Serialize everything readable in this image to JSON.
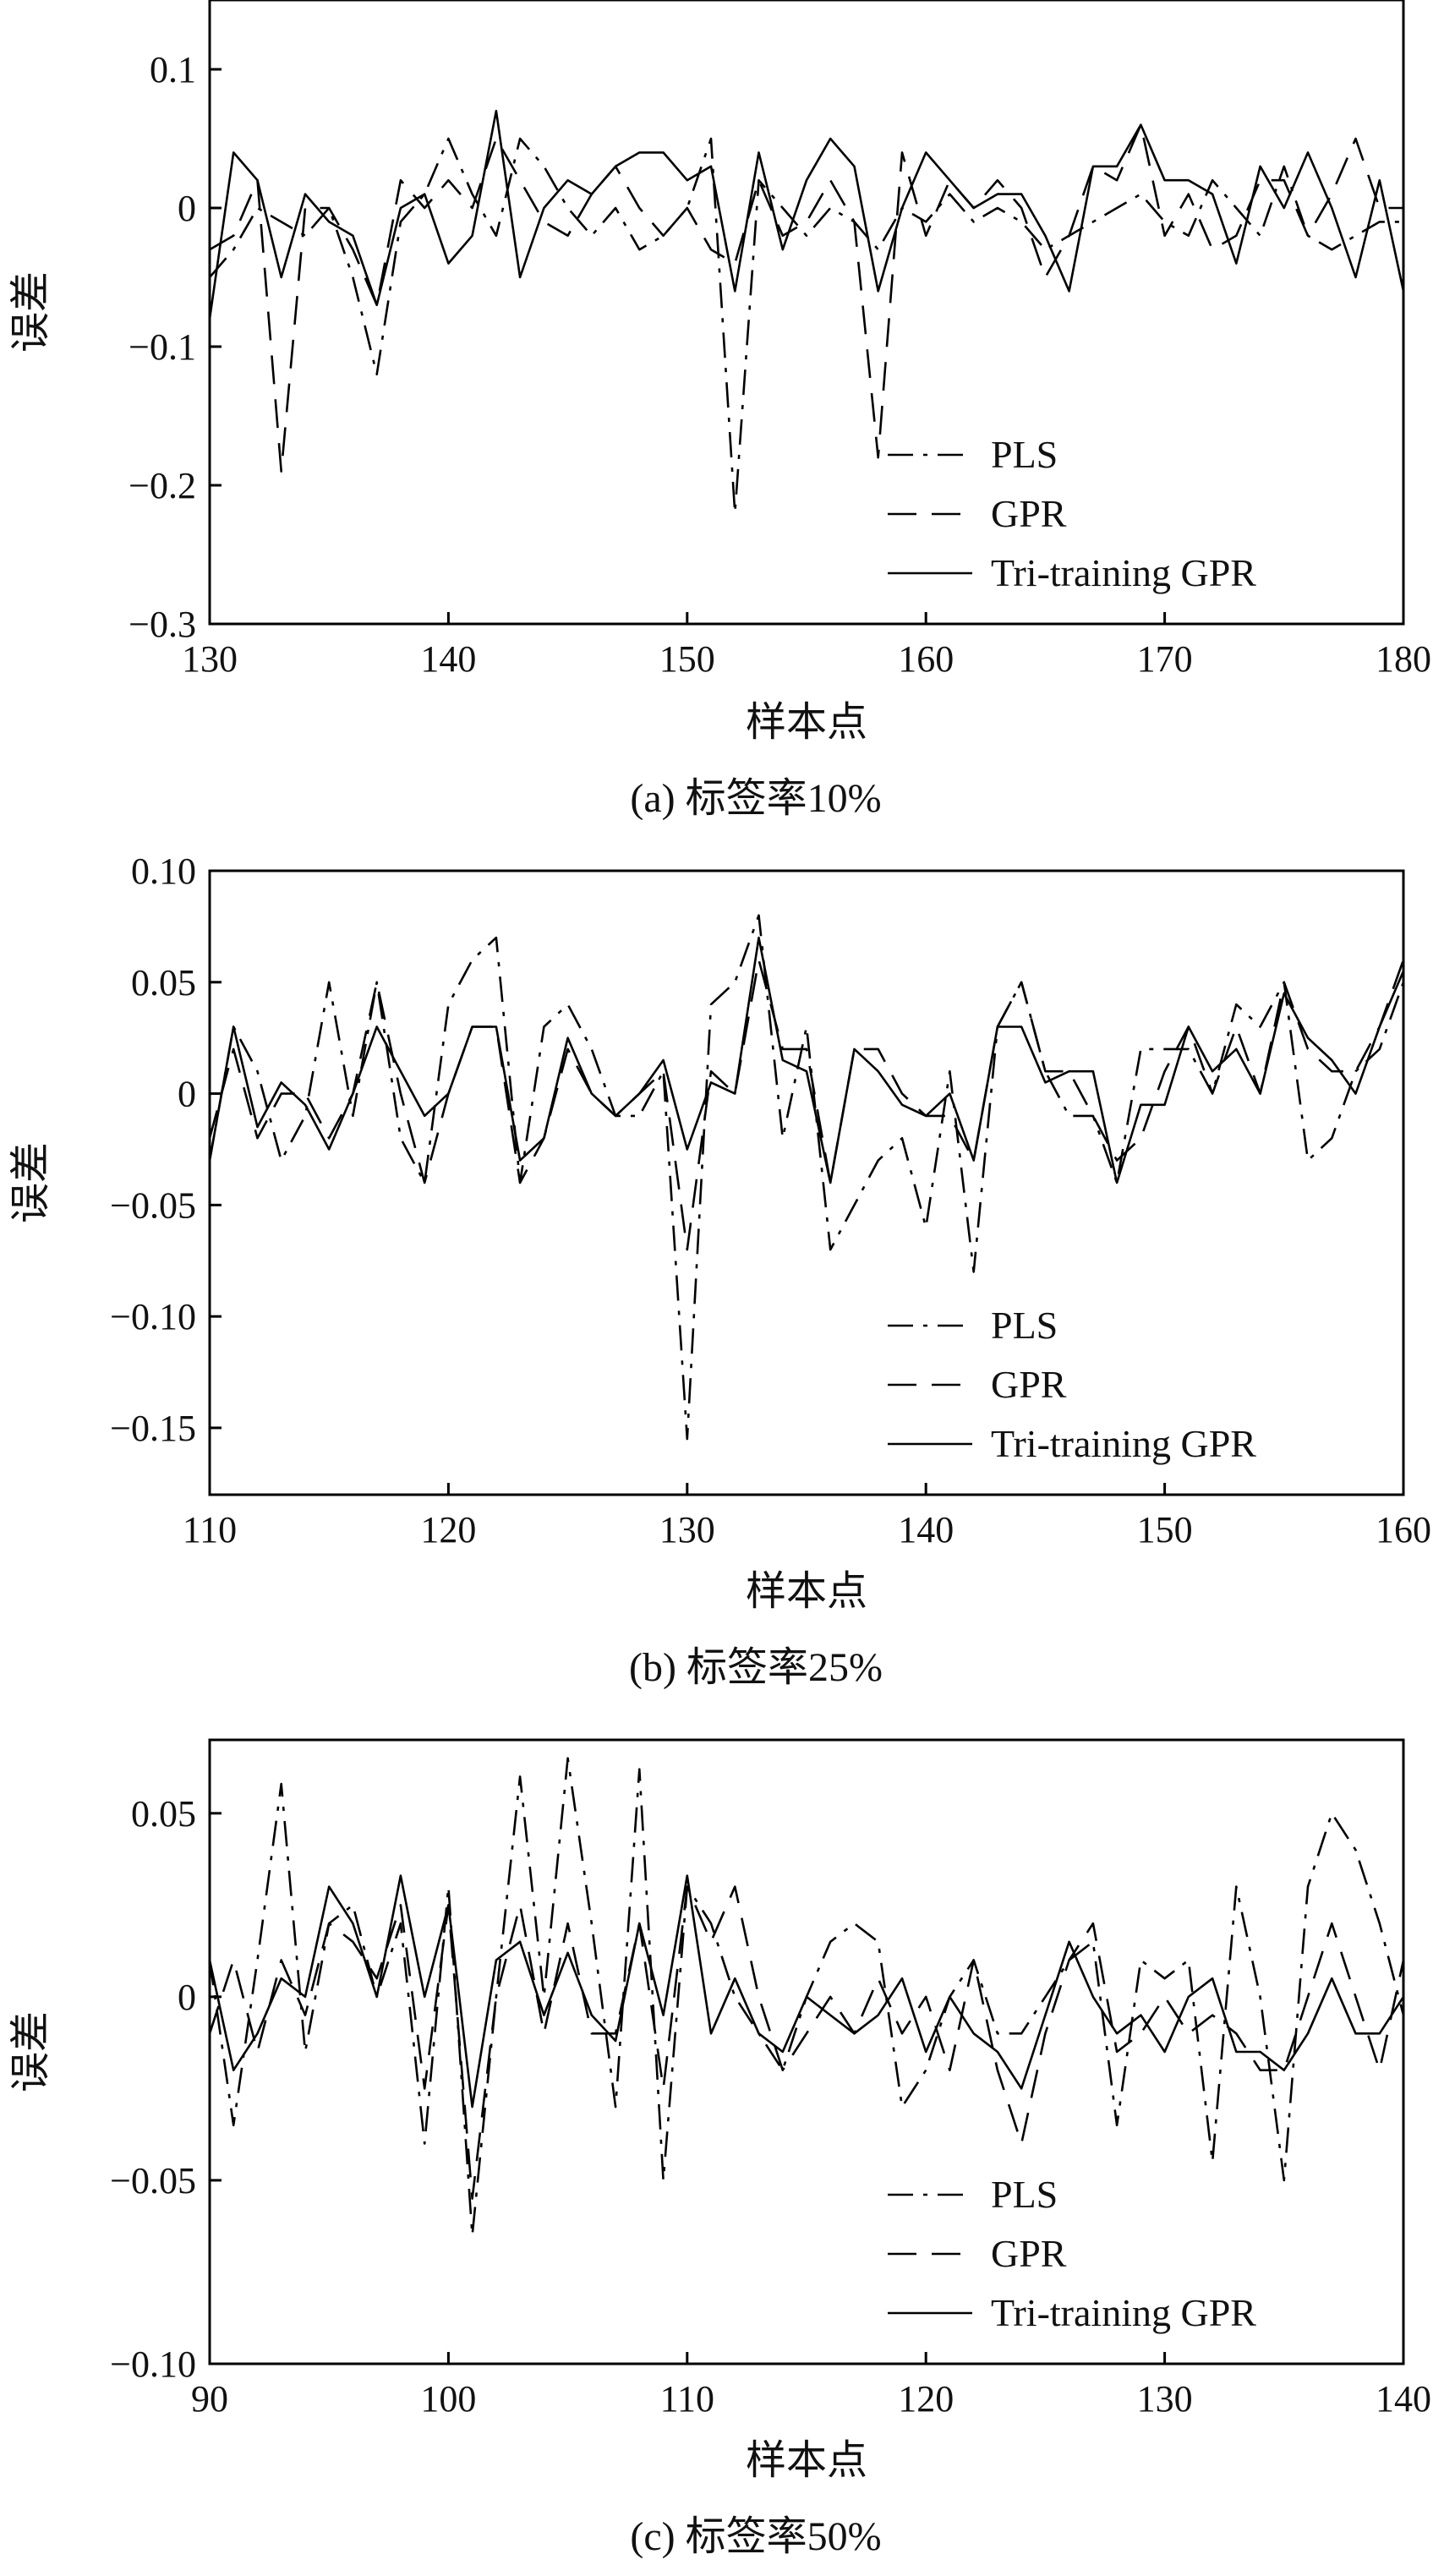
{
  "chart_data": [
    {
      "type": "line",
      "caption": "(a) 标签率10%",
      "xlabel": "样本点",
      "ylabel": "误差",
      "xlim": [
        130,
        180
      ],
      "ylim": [
        -0.3,
        0.15
      ],
      "xticks": [
        130,
        140,
        150,
        160,
        170,
        180
      ],
      "xtick_labels": [
        "130",
        "140",
        "150",
        "160",
        "170",
        "180"
      ],
      "yticks": [
        0.1,
        0,
        -0.1,
        -0.2,
        -0.3
      ],
      "ytick_labels": [
        "0.1",
        "0",
        "−0.1",
        "−0.2",
        "−0.3"
      ],
      "grid": false,
      "legend_position": "bottom-right",
      "x": [
        130,
        131,
        132,
        133,
        134,
        135,
        136,
        137,
        138,
        139,
        140,
        141,
        142,
        143,
        144,
        145,
        146,
        147,
        148,
        149,
        150,
        151,
        152,
        153,
        154,
        155,
        156,
        157,
        158,
        159,
        160,
        161,
        162,
        163,
        164,
        165,
        166,
        167,
        168,
        169,
        170,
        171,
        172,
        173,
        174,
        175,
        176,
        177,
        178,
        179,
        180
      ],
      "series": [
        {
          "name": "PLS",
          "style": "dashdot",
          "values": [
            -0.05,
            -0.03,
            0.0,
            -0.01,
            -0.02,
            0.0,
            -0.05,
            -0.12,
            -0.01,
            0.01,
            0.05,
            0.01,
            -0.02,
            0.05,
            0.03,
            0.0,
            -0.02,
            0.0,
            -0.03,
            -0.02,
            0.0,
            0.05,
            -0.22,
            0.02,
            0.0,
            -0.02,
            0.0,
            -0.01,
            -0.03,
            0.0,
            -0.01,
            0.01,
            -0.01,
            0.0,
            -0.01,
            -0.03,
            -0.02,
            -0.01,
            0.0,
            0.01,
            -0.01,
            -0.02,
            0.02,
            0.0,
            -0.02,
            0.03,
            -0.02,
            -0.03,
            -0.02,
            -0.01,
            -0.01
          ]
        },
        {
          "name": "GPR",
          "style": "dashed",
          "values": [
            -0.03,
            -0.02,
            0.02,
            -0.19,
            0.0,
            0.0,
            -0.03,
            -0.07,
            0.02,
            0.0,
            0.02,
            0.0,
            0.05,
            0.02,
            -0.01,
            -0.02,
            0.01,
            0.03,
            0.0,
            -0.02,
            0.0,
            -0.03,
            -0.04,
            0.02,
            -0.02,
            -0.01,
            0.02,
            -0.01,
            -0.18,
            0.04,
            -0.02,
            0.02,
            0.0,
            0.02,
            0.0,
            -0.05,
            -0.02,
            0.03,
            0.02,
            0.06,
            -0.02,
            0.01,
            -0.03,
            -0.02,
            0.02,
            0.02,
            -0.02,
            0.01,
            0.05,
            0.0,
            0.0
          ]
        },
        {
          "name": "Tri-training GPR",
          "style": "solid",
          "values": [
            -0.08,
            0.04,
            0.02,
            -0.05,
            0.01,
            -0.01,
            -0.02,
            -0.07,
            0.0,
            0.01,
            -0.04,
            -0.02,
            0.07,
            -0.05,
            0.0,
            0.02,
            0.01,
            0.03,
            0.04,
            0.04,
            0.02,
            0.03,
            -0.06,
            0.04,
            -0.03,
            0.02,
            0.05,
            0.03,
            -0.06,
            0.0,
            0.04,
            0.02,
            0.0,
            0.01,
            0.01,
            -0.02,
            -0.06,
            0.03,
            0.03,
            0.06,
            0.02,
            0.02,
            0.01,
            -0.04,
            0.03,
            0.0,
            0.04,
            0.0,
            -0.05,
            0.02,
            -0.06
          ]
        }
      ]
    },
    {
      "type": "line",
      "caption": "(b) 标签率25%",
      "xlabel": "样本点",
      "ylabel": "误差",
      "xlim": [
        110,
        160
      ],
      "ylim": [
        -0.18,
        0.1
      ],
      "xticks": [
        110,
        120,
        130,
        140,
        150,
        160
      ],
      "xtick_labels": [
        "110",
        "120",
        "130",
        "140",
        "150",
        "160"
      ],
      "yticks": [
        0.1,
        0.05,
        0,
        -0.05,
        -0.1,
        -0.15
      ],
      "ytick_labels": [
        "0.10",
        "0.05",
        "0",
        "−0.05",
        "−0.10",
        "−0.15"
      ],
      "grid": false,
      "legend_position": "bottom-right",
      "x": [
        110,
        111,
        112,
        113,
        114,
        115,
        116,
        117,
        118,
        119,
        120,
        121,
        122,
        123,
        124,
        125,
        126,
        127,
        128,
        129,
        130,
        131,
        132,
        133,
        134,
        135,
        136,
        137,
        138,
        139,
        140,
        141,
        142,
        143,
        144,
        145,
        146,
        147,
        148,
        149,
        150,
        151,
        152,
        153,
        154,
        155,
        156,
        157,
        158,
        159,
        160
      ],
      "series": [
        {
          "name": "PLS",
          "style": "dashdot",
          "values": [
            -0.03,
            0.03,
            0.01,
            -0.03,
            -0.01,
            0.05,
            -0.01,
            0.05,
            -0.02,
            -0.04,
            0.04,
            0.06,
            0.07,
            -0.04,
            0.03,
            0.04,
            0.02,
            -0.01,
            -0.01,
            0.01,
            -0.155,
            0.04,
            0.05,
            0.08,
            -0.02,
            0.03,
            -0.07,
            -0.05,
            -0.03,
            -0.02,
            -0.06,
            0.01,
            -0.08,
            0.03,
            0.05,
            0.01,
            -0.01,
            -0.01,
            -0.04,
            0.02,
            0.02,
            0.02,
            0.0,
            0.04,
            0.03,
            0.05,
            -0.03,
            -0.02,
            0.01,
            0.02,
            0.05
          ]
        },
        {
          "name": "GPR",
          "style": "dashed",
          "values": [
            -0.02,
            0.02,
            -0.02,
            0.0,
            0.0,
            -0.02,
            0.0,
            0.05,
            0.0,
            -0.04,
            0.0,
            0.03,
            0.03,
            -0.04,
            -0.02,
            0.02,
            0.0,
            -0.01,
            0.0,
            0.01,
            -0.07,
            0.01,
            0.0,
            0.06,
            0.02,
            0.02,
            -0.04,
            0.02,
            0.02,
            0.0,
            -0.01,
            -0.01,
            -0.03,
            0.03,
            0.05,
            0.01,
            0.01,
            -0.01,
            -0.03,
            -0.02,
            0.01,
            0.03,
            0.0,
            0.03,
            0.0,
            0.05,
            0.02,
            0.01,
            0.01,
            0.03,
            0.06
          ]
        },
        {
          "name": "Tri-training GPR",
          "style": "solid",
          "values": [
            -0.03,
            0.03,
            -0.015,
            0.005,
            -0.005,
            -0.025,
            0.0,
            0.03,
            0.01,
            -0.01,
            0.0,
            0.03,
            0.03,
            -0.03,
            -0.02,
            0.025,
            0.0,
            -0.01,
            0.0,
            0.015,
            -0.025,
            0.005,
            0.0,
            0.07,
            0.015,
            0.01,
            -0.04,
            0.02,
            0.01,
            -0.005,
            -0.01,
            0.0,
            -0.03,
            0.03,
            0.03,
            0.005,
            0.01,
            0.01,
            -0.04,
            -0.005,
            -0.005,
            0.03,
            0.01,
            0.02,
            0.0,
            0.045,
            0.025,
            0.015,
            0.0,
            0.03,
            0.055
          ]
        }
      ]
    },
    {
      "type": "line",
      "caption": "(c) 标签率50%",
      "xlabel": "样本点",
      "ylabel": "误差",
      "xlim": [
        90,
        140
      ],
      "ylim": [
        -0.1,
        0.07
      ],
      "xticks": [
        90,
        100,
        110,
        120,
        130,
        140
      ],
      "xtick_labels": [
        "90",
        "100",
        "110",
        "120",
        "130",
        "140"
      ],
      "yticks": [
        0.05,
        0,
        -0.05,
        -0.1
      ],
      "ytick_labels": [
        "0.05",
        "0",
        "−0.05",
        "−0.10"
      ],
      "grid": false,
      "legend_position": "bottom-right",
      "x": [
        90,
        91,
        92,
        93,
        94,
        95,
        96,
        97,
        98,
        99,
        100,
        101,
        102,
        103,
        104,
        105,
        106,
        107,
        108,
        109,
        110,
        111,
        112,
        113,
        114,
        115,
        116,
        117,
        118,
        119,
        120,
        121,
        122,
        123,
        124,
        125,
        126,
        127,
        128,
        129,
        130,
        131,
        132,
        133,
        134,
        135,
        136,
        137,
        138,
        139,
        140
      ],
      "series": [
        {
          "name": "PLS",
          "style": "dashdot",
          "values": [
            0.01,
            -0.035,
            0.01,
            0.058,
            -0.015,
            0.02,
            0.025,
            0.0,
            0.02,
            -0.04,
            0.03,
            -0.065,
            0.0,
            0.06,
            0.0,
            0.065,
            0.02,
            -0.03,
            0.062,
            -0.05,
            0.03,
            0.02,
            0.0,
            -0.01,
            -0.02,
            0.0,
            0.015,
            0.02,
            0.015,
            -0.03,
            -0.02,
            0.0,
            0.01,
            -0.01,
            -0.01,
            0.0,
            0.01,
            0.015,
            -0.035,
            0.01,
            0.005,
            0.01,
            -0.045,
            0.03,
            0.0,
            -0.05,
            0.03,
            0.05,
            0.04,
            0.02,
            -0.005
          ]
        },
        {
          "name": "GPR",
          "style": "dashed",
          "values": [
            -0.01,
            0.01,
            -0.015,
            0.01,
            -0.005,
            0.02,
            0.015,
            0.005,
            0.025,
            -0.025,
            0.025,
            -0.055,
            0.0,
            0.025,
            -0.01,
            0.02,
            -0.01,
            -0.01,
            0.02,
            -0.025,
            0.03,
            0.015,
            0.03,
            0.0,
            -0.02,
            -0.01,
            0.0,
            -0.01,
            0.005,
            -0.01,
            0.0,
            -0.02,
            0.01,
            -0.02,
            -0.04,
            -0.01,
            0.01,
            0.02,
            -0.015,
            -0.01,
            0.0,
            -0.01,
            -0.005,
            -0.01,
            -0.02,
            -0.02,
            0.0,
            0.02,
            0.0,
            -0.02,
            0.01
          ]
        },
        {
          "name": "Tri-training GPR",
          "style": "solid",
          "values": [
            0.01,
            -0.02,
            -0.01,
            0.005,
            0.0,
            0.03,
            0.02,
            0.0,
            0.033,
            0.0,
            0.025,
            -0.03,
            0.01,
            0.015,
            -0.005,
            0.012,
            -0.005,
            -0.012,
            0.02,
            -0.005,
            0.033,
            -0.01,
            0.005,
            -0.01,
            -0.015,
            0.0,
            -0.005,
            -0.01,
            -0.005,
            0.005,
            -0.015,
            0.0,
            -0.01,
            -0.015,
            -0.025,
            -0.005,
            0.015,
            0.0,
            -0.01,
            -0.005,
            -0.015,
            0.0,
            0.005,
            -0.015,
            -0.015,
            -0.02,
            -0.01,
            0.005,
            -0.01,
            -0.01,
            0.0
          ]
        }
      ]
    }
  ]
}
